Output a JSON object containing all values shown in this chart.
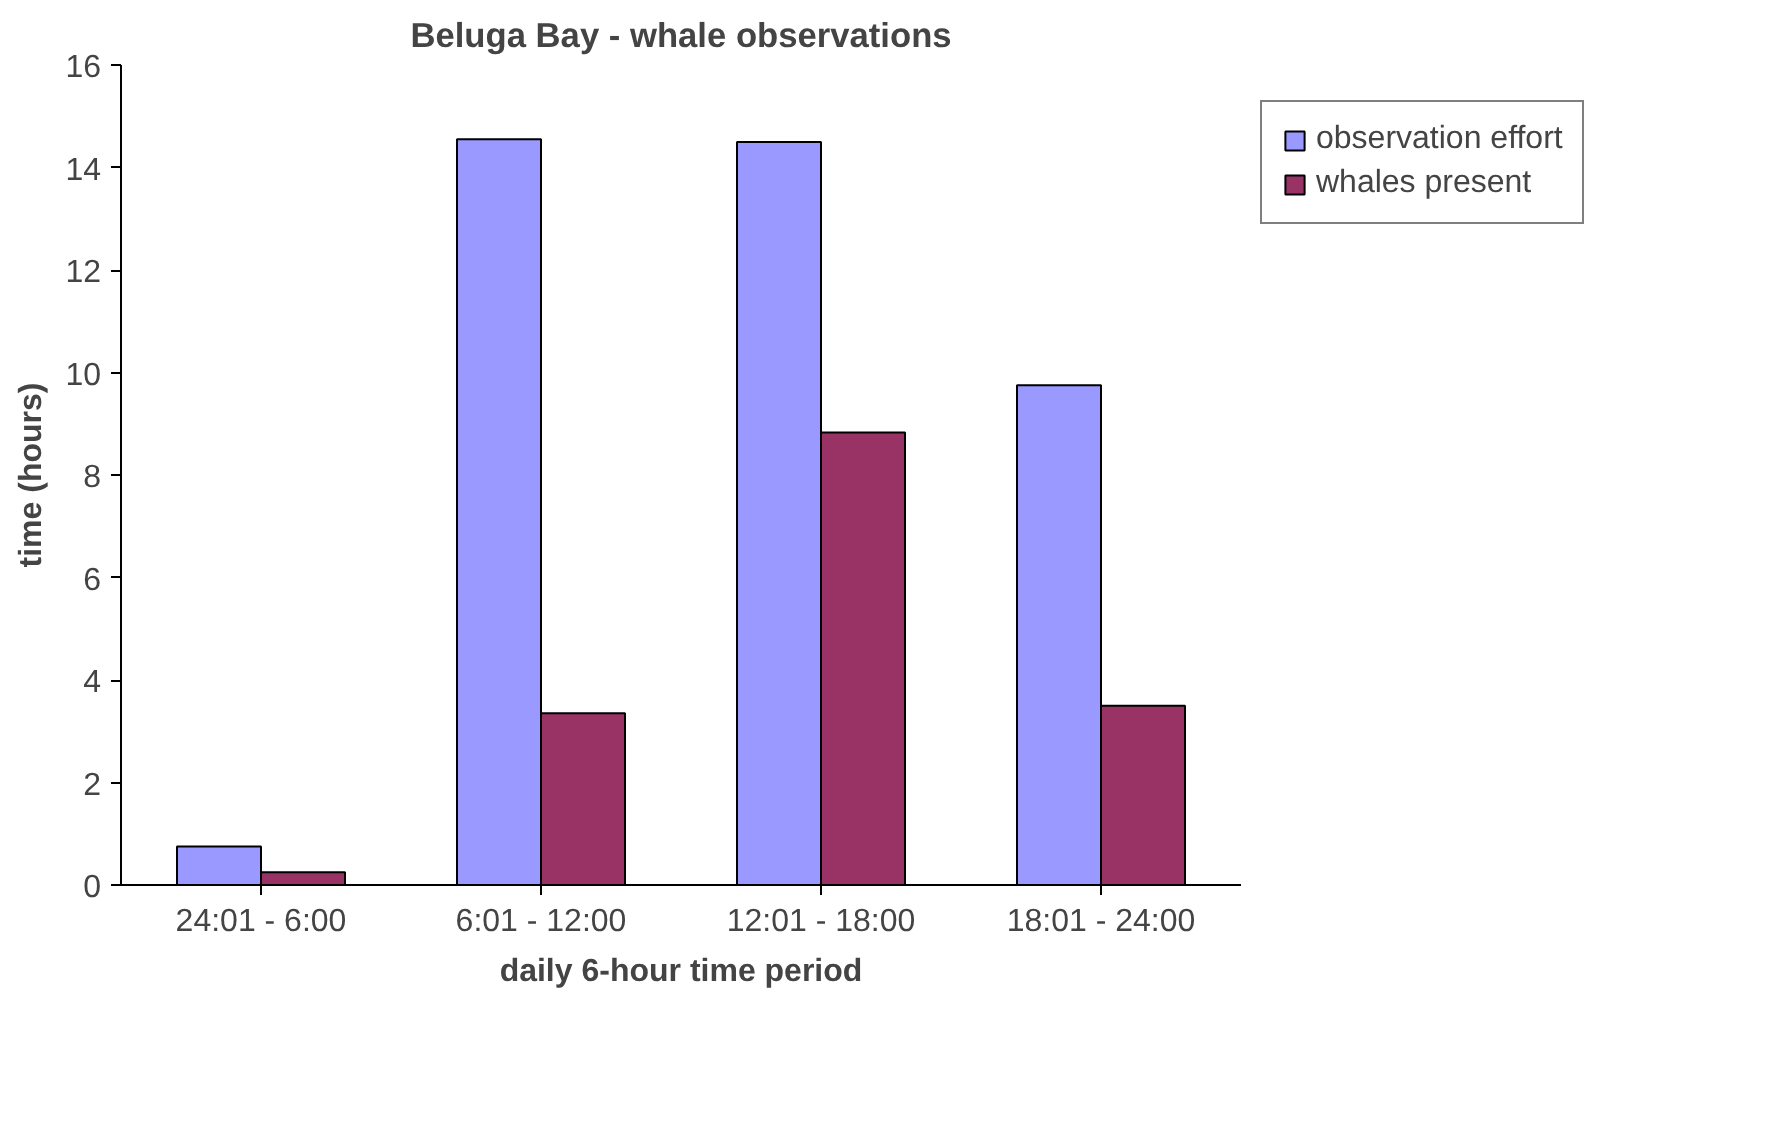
{
  "chart_data": {
    "type": "bar",
    "title": "Beluga Bay - whale observations",
    "xlabel": "daily 6-hour time period",
    "ylabel": "time (hours)",
    "categories": [
      "24:01 - 6:00",
      "6:01 - 12:00",
      "12:01 - 18:00",
      "18:01 - 24:00"
    ],
    "series": [
      {
        "name": "observation effort",
        "color": "#9999ff",
        "values": [
          0.75,
          14.55,
          14.5,
          9.75
        ]
      },
      {
        "name": "whales present",
        "color": "#993366",
        "values": [
          0.25,
          3.35,
          8.83,
          3.5
        ]
      }
    ],
    "ylim": [
      0,
      16
    ],
    "yticks": [
      0,
      2,
      4,
      6,
      8,
      10,
      12,
      14,
      16
    ],
    "grid": false,
    "legend": "top right"
  }
}
